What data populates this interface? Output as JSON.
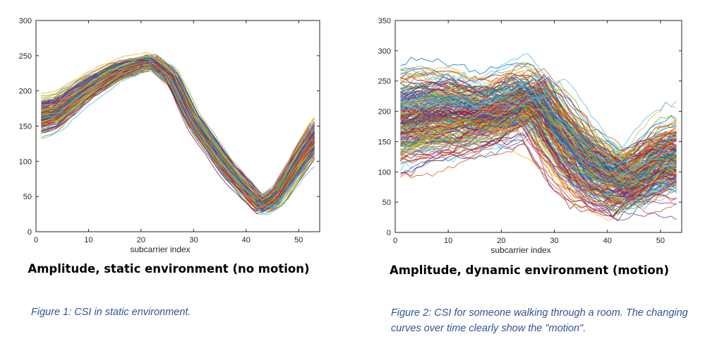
{
  "colors": {
    "axis": "#262626",
    "caption": "#2f5496",
    "palette": [
      "#0072bd",
      "#d95319",
      "#edb120",
      "#7e2f8e",
      "#77ac30",
      "#4dbeee",
      "#a2142f"
    ]
  },
  "chart_data": [
    {
      "type": "line",
      "title": "Amplitude, static environment (no motion)",
      "xlabel": "subcarrier index",
      "ylabel": "",
      "xlim": [
        0,
        54
      ],
      "ylim": [
        0,
        300
      ],
      "xticks": [
        0,
        10,
        20,
        30,
        40,
        50
      ],
      "yticks": [
        0,
        50,
        100,
        150,
        200,
        250,
        300
      ],
      "grid": false,
      "n_lines": 150,
      "x": [
        1,
        4,
        10,
        16,
        22,
        26,
        30,
        36,
        40,
        43,
        46,
        50,
        53
      ],
      "mean_curve": [
        165,
        170,
        205,
        230,
        243,
        220,
        158,
        95,
        62,
        38,
        52,
        100,
        135
      ],
      "spread": [
        22,
        20,
        14,
        10,
        8,
        10,
        12,
        12,
        10,
        9,
        12,
        18,
        22
      ]
    },
    {
      "type": "line",
      "title": "Amplitude, dynamic environment (motion)",
      "xlabel": "subcarrier index",
      "ylabel": "",
      "xlim": [
        0,
        54
      ],
      "ylim": [
        0,
        350
      ],
      "xticks": [
        0,
        10,
        20,
        30,
        40,
        50
      ],
      "yticks": [
        0,
        50,
        100,
        150,
        200,
        250,
        300,
        350
      ],
      "grid": false,
      "n_lines": 240,
      "x": [
        1,
        4,
        10,
        16,
        22,
        26,
        30,
        36,
        40,
        43,
        46,
        50,
        53
      ],
      "mean_curve": [
        185,
        195,
        200,
        195,
        210,
        225,
        170,
        110,
        95,
        80,
        95,
        120,
        125
      ],
      "spread": [
        60,
        60,
        55,
        45,
        45,
        40,
        50,
        50,
        45,
        40,
        40,
        45,
        50
      ]
    }
  ],
  "captions": [
    "Figure 1: CSI in static environment.",
    "Figure 2: CSI for someone walking through a room. The changing curves over time clearly show the \"motion\"."
  ]
}
